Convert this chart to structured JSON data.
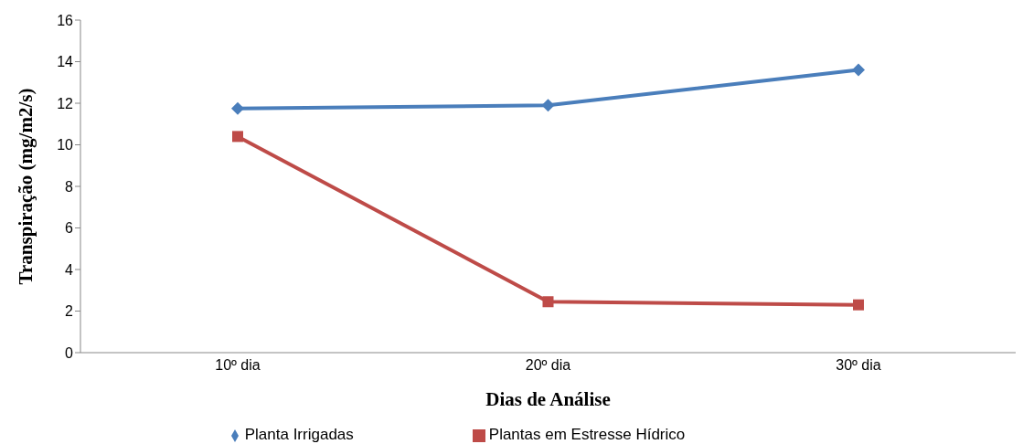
{
  "chart_data": {
    "type": "line",
    "xlabel": "Dias de Análise",
    "ylabel": "Transpiração (mg/m2/s)",
    "categories": [
      "10º dia",
      "20º dia",
      "30º dia"
    ],
    "series": [
      {
        "name": "Planta Irrigadas",
        "color": "#4a7ebb",
        "marker": "diamond",
        "values": [
          11.75,
          11.9,
          13.6
        ]
      },
      {
        "name": "Plantas em Estresse Hídrico",
        "color": "#be4b48",
        "marker": "square",
        "values": [
          10.4,
          2.45,
          2.3
        ]
      }
    ],
    "ylim": [
      0,
      16
    ],
    "yticks": [
      0,
      2,
      4,
      6,
      8,
      10,
      12,
      14,
      16
    ],
    "grid": false,
    "legend": "bottom",
    "line_style": "solid"
  }
}
